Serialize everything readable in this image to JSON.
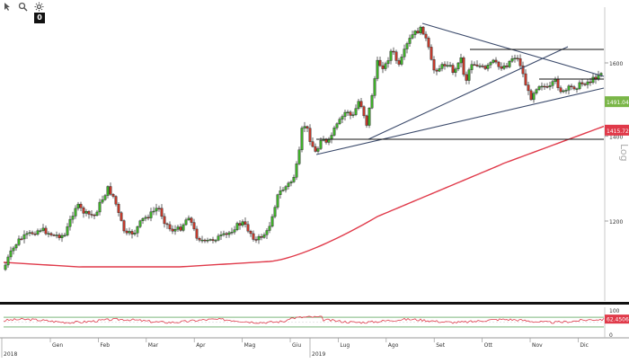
{
  "toolbar": {
    "icons": [
      "cursor-icon",
      "magnifier-icon",
      "settings-icon"
    ],
    "badge": "0"
  },
  "chart_data": [
    {
      "type": "candlestick",
      "title": "",
      "ylabel": "Log",
      "yscale": "log",
      "ylim": [
        1100,
        1700
      ],
      "y_ticks": [
        {
          "value": 1600,
          "label": "1600"
        },
        {
          "value": 1400,
          "label": "1400"
        },
        {
          "value": 1200,
          "label": "1200"
        }
      ],
      "last_price": {
        "value": 1491.0474,
        "label": "1491.0474",
        "color": "#7ab648"
      },
      "moving_average": {
        "color": "#e03a4a",
        "last_label": "1415.7239",
        "last_value": 1415.7239
      },
      "x_month_labels": [
        "Gen",
        "Feb",
        "Mar",
        "Apr",
        "Mag",
        "Giu",
        "Lug",
        "Ago",
        "Set",
        "Ott",
        "Nov",
        "Dic"
      ],
      "x_year_labels": [
        "2018",
        "2019"
      ],
      "up_color": "#3fae2a",
      "down_color": "#c0392b",
      "grid": false
    },
    {
      "type": "line",
      "title": "",
      "ylim": [
        0,
        100
      ],
      "y_ticks": [
        {
          "value": 100,
          "label": "100"
        },
        {
          "value": 0,
          "label": "0"
        }
      ],
      "last_value": {
        "value": 62.4506,
        "label": "62.4506",
        "color": "#e03a4a"
      },
      "series_color": "#e03a4a"
    }
  ]
}
